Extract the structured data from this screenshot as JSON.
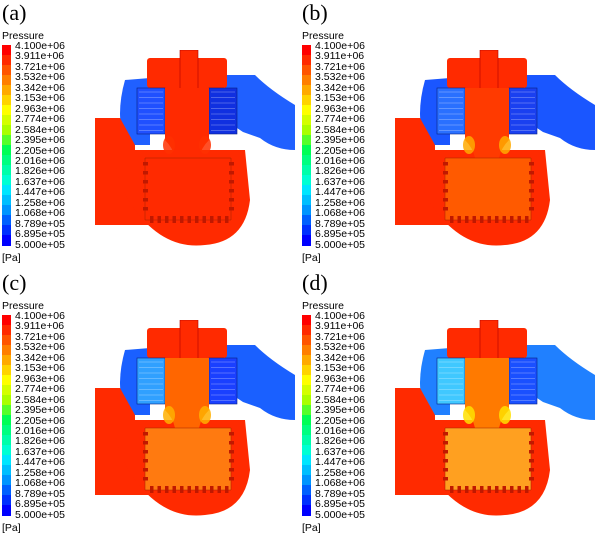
{
  "legend": {
    "title": "Pressure",
    "unit": "[Pa]",
    "ticks": [
      "4.100e+06",
      "3.911e+06",
      "3.721e+06",
      "3.532e+06",
      "3.342e+06",
      "3.153e+06",
      "2.963e+06",
      "2.774e+06",
      "2.584e+06",
      "2.395e+06",
      "2.205e+06",
      "2.016e+06",
      "1.826e+06",
      "1.637e+06",
      "1.447e+06",
      "1.258e+06",
      "1.068e+06",
      "8.789e+05",
      "6.895e+05",
      "5.000e+05"
    ],
    "colors": [
      "#ff0000",
      "#ff2a00",
      "#ff5500",
      "#ff7f00",
      "#ffaa00",
      "#ffd400",
      "#ffff00",
      "#d4ff00",
      "#aaff00",
      "#55ff2a",
      "#00ff55",
      "#00ff80",
      "#00ffaa",
      "#00ffd4",
      "#00e6ff",
      "#00bfff",
      "#0095ff",
      "#0060ff",
      "#0030ff",
      "#0000ff"
    ]
  },
  "panels": [
    {
      "label": "(a)",
      "body_color": "#ff2a00",
      "core_color": "#ff2a00",
      "inner_color": "#ff2a00",
      "left_cage": "#2050ff",
      "right_cage": "#1030e0",
      "outlet": "#2060ff",
      "hot": "#ff3000"
    },
    {
      "label": "(b)",
      "body_color": "#ff2a00",
      "core_color": "#ff3a00",
      "inner_color": "#ff5a00",
      "left_cage": "#2a70ff",
      "right_cage": "#1a40f0",
      "outlet": "#1a56ff",
      "hot": "#ffaa00"
    },
    {
      "label": "(c)",
      "body_color": "#ff2a00",
      "core_color": "#ff6600",
      "inner_color": "#ff7a10",
      "left_cage": "#30a0ff",
      "right_cage": "#1a40ff",
      "outlet": "#1a60ff",
      "hot": "#ffb000"
    },
    {
      "label": "(d)",
      "body_color": "#ff2a00",
      "core_color": "#ff7a00",
      "inner_color": "#ffa020",
      "left_cage": "#40c8ff",
      "right_cage": "#1a50ff",
      "outlet": "#2080ff",
      "hot": "#ffe000"
    }
  ]
}
